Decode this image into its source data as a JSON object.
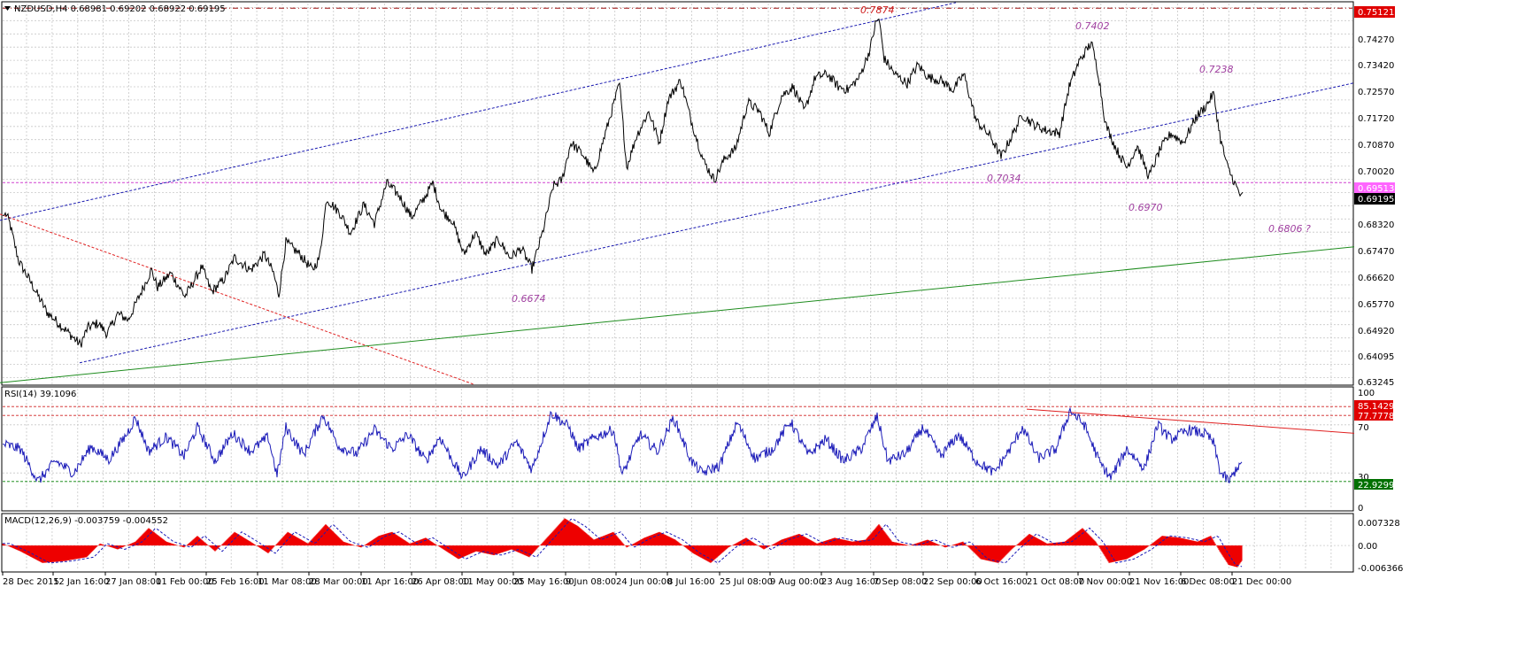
{
  "colors": {
    "background": "#ffffff",
    "grid": "#c8c8c8",
    "price_line": "#000000",
    "channel": "#1a1ab0",
    "red_trend": "#e02020",
    "green_trend": "#1e8c1e",
    "magenta_level": "#d040d0",
    "rsi_line": "#1a1ab8",
    "macd_hist": "#ee0000",
    "signal": "#1a1ab8",
    "annotation_purple": "#a040a0",
    "annotation_red": "#d02020",
    "badge_red": "#e00000",
    "badge_magenta": "#ff66ff",
    "badge_black": "#000000",
    "badge_green": "#007000"
  },
  "main": {
    "title": "NZDUSD,H4  0.68981 0.69202 0.68922 0.69195",
    "menu_icon": "triangle-down-icon",
    "price_axis": [
      "0.74270",
      "0.73420",
      "0.72570",
      "0.71720",
      "0.70870",
      "0.70020",
      "0.68320",
      "0.67470",
      "0.66620",
      "0.65770",
      "0.64920",
      "0.64095",
      "0.63245"
    ],
    "price_badges": [
      {
        "text": "0.75121",
        "color": "red"
      },
      {
        "text": "0.69513",
        "color": "magenta"
      },
      {
        "text": "0.69195",
        "color": "black"
      }
    ],
    "annotations": [
      {
        "text": "0.7874",
        "color": "red"
      },
      {
        "text": "0.7402",
        "color": "purple"
      },
      {
        "text": "0.7238",
        "color": "purple"
      },
      {
        "text": "0.7034",
        "color": "purple"
      },
      {
        "text": "0.6970",
        "color": "purple"
      },
      {
        "text": "0.6806 ?",
        "color": "purple"
      },
      {
        "text": "0.6674",
        "color": "purple"
      }
    ]
  },
  "rsi": {
    "title": "RSI(14) 39.1096",
    "axis": [
      "100",
      "70",
      "30",
      "0"
    ],
    "badges": [
      {
        "text": "85.1429",
        "color": "red"
      },
      {
        "text": "77.7778",
        "color": "red"
      },
      {
        "text": "22.9299",
        "color": "green"
      }
    ]
  },
  "macd": {
    "title": "MACD(12,26,9) -0.003759 -0.004552",
    "axis": [
      "0.007328",
      "0.00",
      "-0.006366"
    ]
  },
  "time_axis": [
    "28 Dec 2015",
    "12 Jan 16:00",
    "27 Jan 08:00",
    "11 Feb 00:00",
    "25 Feb 16:00",
    "11 Mar 08:00",
    "28 Mar 00:00",
    "11 Apr 16:00",
    "26 Apr 08:00",
    "11 May 00:00",
    "25 May 16:00",
    "9 Jun 08:00",
    "24 Jun 00:00",
    "8 Jul 16:00",
    "25 Jul 08:00",
    "9 Aug 00:00",
    "23 Aug 16:00",
    "7 Sep 08:00",
    "22 Sep 00:00",
    "6 Oct 16:00",
    "21 Oct 08:00",
    "7 Nov 00:00",
    "21 Nov 16:00",
    "6 Dec 08:00",
    "21 Dec 00:00"
  ],
  "chart_data": {
    "type": "line",
    "symbol": "NZDUSD",
    "timeframe": "H4",
    "ohlc_last": {
      "open": 0.68981,
      "high": 0.69202,
      "low": 0.68922,
      "close": 0.69195
    },
    "price_range": [
      0.6303,
      0.7527
    ],
    "x": [
      "28 Dec 2015",
      "12 Jan 16:00",
      "27 Jan 08:00",
      "11 Feb 00:00",
      "25 Feb 16:00",
      "11 Mar 08:00",
      "28 Mar 00:00",
      "11 Apr 16:00",
      "26 Apr 08:00",
      "11 May 00:00",
      "25 May 16:00",
      "9 Jun 08:00",
      "24 Jun 00:00",
      "8 Jul 16:00",
      "25 Jul 08:00",
      "9 Aug 00:00",
      "23 Aug 16:00",
      "7 Sep 08:00",
      "22 Sep 00:00",
      "6 Oct 16:00",
      "21 Oct 08:00",
      "7 Nov 00:00",
      "21 Nov 16:00",
      "6 Dec 08:00",
      "21 Dec 00:00"
    ],
    "price_pivots": [
      [
        0,
        0.6845
      ],
      [
        4,
        0.685
      ],
      [
        8,
        0.682
      ],
      [
        18,
        0.67
      ],
      [
        32,
        0.663
      ],
      [
        50,
        0.6535
      ],
      [
        72,
        0.6475
      ],
      [
        88,
        0.643
      ],
      [
        96,
        0.6485
      ],
      [
        108,
        0.65
      ],
      [
        118,
        0.6465
      ],
      [
        130,
        0.653
      ],
      [
        142,
        0.651
      ],
      [
        155,
        0.659
      ],
      [
        168,
        0.667
      ],
      [
        175,
        0.6615
      ],
      [
        190,
        0.666
      ],
      [
        206,
        0.6585
      ],
      [
        225,
        0.668
      ],
      [
        236,
        0.66
      ],
      [
        250,
        0.664
      ],
      [
        262,
        0.671
      ],
      [
        280,
        0.667
      ],
      [
        296,
        0.672
      ],
      [
        306,
        0.666
      ],
      [
        312,
        0.659
      ],
      [
        320,
        0.676
      ],
      [
        336,
        0.672
      ],
      [
        350,
        0.667
      ],
      [
        358,
        0.671
      ],
      [
        366,
        0.69
      ],
      [
        382,
        0.685
      ],
      [
        393,
        0.679
      ],
      [
        408,
        0.688
      ],
      [
        420,
        0.682
      ],
      [
        434,
        0.695
      ],
      [
        448,
        0.691
      ],
      [
        462,
        0.684
      ],
      [
        476,
        0.69
      ],
      [
        486,
        0.695
      ],
      [
        496,
        0.686
      ],
      [
        508,
        0.683
      ],
      [
        521,
        0.672
      ],
      [
        534,
        0.679
      ],
      [
        546,
        0.672
      ],
      [
        560,
        0.677
      ],
      [
        573,
        0.671
      ],
      [
        586,
        0.674
      ],
      [
        598,
        0.6674
      ],
      [
        610,
        0.679
      ],
      [
        622,
        0.694
      ],
      [
        632,
        0.696
      ],
      [
        642,
        0.708
      ],
      [
        656,
        0.704
      ],
      [
        668,
        0.698
      ],
      [
        682,
        0.712
      ],
      [
        697,
        0.727
      ],
      [
        705,
        0.7
      ],
      [
        716,
        0.71
      ],
      [
        730,
        0.718
      ],
      [
        742,
        0.708
      ],
      [
        752,
        0.722
      ],
      [
        766,
        0.728
      ],
      [
        778,
        0.715
      ],
      [
        792,
        0.702
      ],
      [
        804,
        0.696
      ],
      [
        816,
        0.703
      ],
      [
        828,
        0.706
      ],
      [
        842,
        0.721
      ],
      [
        855,
        0.718
      ],
      [
        866,
        0.711
      ],
      [
        880,
        0.723
      ],
      [
        893,
        0.726
      ],
      [
        906,
        0.718
      ],
      [
        918,
        0.729
      ],
      [
        932,
        0.73
      ],
      [
        944,
        0.726
      ],
      [
        955,
        0.725
      ],
      [
        968,
        0.729
      ],
      [
        980,
        0.738
      ],
      [
        986,
        0.746
      ],
      [
        990,
        0.748
      ],
      [
        996,
        0.735
      ],
      [
        1008,
        0.73
      ],
      [
        1022,
        0.727
      ],
      [
        1034,
        0.733
      ],
      [
        1046,
        0.729
      ],
      [
        1060,
        0.728
      ],
      [
        1074,
        0.725
      ],
      [
        1086,
        0.73
      ],
      [
        1100,
        0.715
      ],
      [
        1116,
        0.71
      ],
      [
        1128,
        0.7034
      ],
      [
        1140,
        0.71
      ],
      [
        1152,
        0.717
      ],
      [
        1164,
        0.714
      ],
      [
        1178,
        0.712
      ],
      [
        1194,
        0.711
      ],
      [
        1205,
        0.726
      ],
      [
        1216,
        0.734
      ],
      [
        1230,
        0.7402
      ],
      [
        1238,
        0.73
      ],
      [
        1246,
        0.714
      ],
      [
        1258,
        0.706
      ],
      [
        1270,
        0.7
      ],
      [
        1282,
        0.707
      ],
      [
        1295,
        0.697
      ],
      [
        1308,
        0.706
      ],
      [
        1320,
        0.711
      ],
      [
        1334,
        0.708
      ],
      [
        1348,
        0.716
      ],
      [
        1360,
        0.72
      ],
      [
        1368,
        0.7238
      ],
      [
        1376,
        0.709
      ],
      [
        1384,
        0.7
      ],
      [
        1392,
        0.695
      ],
      [
        1398,
        0.691
      ],
      [
        1401,
        0.692
      ]
    ],
    "rsi": {
      "period": 14,
      "current": 39.1096,
      "levels": [
        30,
        70
      ],
      "ylim": [
        0,
        100
      ],
      "pivots": [
        [
          0,
          54
        ],
        [
          20,
          50
        ],
        [
          40,
          23
        ],
        [
          60,
          40
        ],
        [
          80,
          30
        ],
        [
          100,
          52
        ],
        [
          120,
          41
        ],
        [
          140,
          62
        ],
        [
          150,
          76
        ],
        [
          165,
          48
        ],
        [
          185,
          60
        ],
        [
          205,
          44
        ],
        [
          220,
          68
        ],
        [
          240,
          40
        ],
        [
          260,
          63
        ],
        [
          280,
          48
        ],
        [
          300,
          60
        ],
        [
          310,
          28
        ],
        [
          320,
          68
        ],
        [
          340,
          45
        ],
        [
          362,
          78
        ],
        [
          380,
          52
        ],
        [
          400,
          46
        ],
        [
          420,
          66
        ],
        [
          440,
          50
        ],
        [
          458,
          62
        ],
        [
          478,
          40
        ],
        [
          494,
          60
        ],
        [
          510,
          38
        ],
        [
          520,
          26
        ],
        [
          540,
          50
        ],
        [
          560,
          36
        ],
        [
          580,
          56
        ],
        [
          598,
          33
        ],
        [
          620,
          80
        ],
        [
          640,
          68
        ],
        [
          650,
          50
        ],
        [
          670,
          60
        ],
        [
          690,
          66
        ],
        [
          700,
          28
        ],
        [
          720,
          62
        ],
        [
          740,
          48
        ],
        [
          758,
          76
        ],
        [
          778,
          40
        ],
        [
          790,
          30
        ],
        [
          810,
          36
        ],
        [
          830,
          72
        ],
        [
          850,
          42
        ],
        [
          870,
          50
        ],
        [
          890,
          73
        ],
        [
          910,
          45
        ],
        [
          930,
          58
        ],
        [
          950,
          40
        ],
        [
          970,
          50
        ],
        [
          988,
          77
        ],
        [
          1000,
          40
        ],
        [
          1020,
          46
        ],
        [
          1040,
          68
        ],
        [
          1060,
          44
        ],
        [
          1080,
          62
        ],
        [
          1100,
          40
        ],
        [
          1120,
          30
        ],
        [
          1140,
          52
        ],
        [
          1152,
          68
        ],
        [
          1170,
          42
        ],
        [
          1190,
          50
        ],
        [
          1206,
          82
        ],
        [
          1222,
          70
        ],
        [
          1240,
          38
        ],
        [
          1252,
          26
        ],
        [
          1270,
          50
        ],
        [
          1290,
          34
        ],
        [
          1305,
          70
        ],
        [
          1320,
          58
        ],
        [
          1340,
          66
        ],
        [
          1360,
          62
        ],
        [
          1368,
          55
        ],
        [
          1376,
          30
        ],
        [
          1386,
          22.93
        ],
        [
          1394,
          34
        ],
        [
          1400,
          39.11
        ]
      ]
    },
    "macd": {
      "params": [
        12,
        26,
        9
      ],
      "main": -0.003759,
      "signal": -0.004552,
      "ylim": [
        -0.006366,
        0.007328
      ],
      "pivots": [
        [
          0,
          0.0005
        ],
        [
          20,
          -0.0015
        ],
        [
          45,
          -0.0045
        ],
        [
          70,
          -0.004
        ],
        [
          95,
          -0.003
        ],
        [
          110,
          0.0005
        ],
        [
          130,
          -0.001
        ],
        [
          150,
          0.001
        ],
        [
          165,
          0.0045
        ],
        [
          185,
          0.001
        ],
        [
          205,
          -0.0005
        ],
        [
          220,
          0.0025
        ],
        [
          240,
          -0.0015
        ],
        [
          262,
          0.0035
        ],
        [
          280,
          0.001
        ],
        [
          300,
          -0.002
        ],
        [
          322,
          0.0035
        ],
        [
          345,
          0.0005
        ],
        [
          365,
          0.0055
        ],
        [
          385,
          0.001
        ],
        [
          405,
          -0.0005
        ],
        [
          425,
          0.0025
        ],
        [
          440,
          0.0035
        ],
        [
          460,
          0.0005
        ],
        [
          478,
          0.002
        ],
        [
          498,
          -0.001
        ],
        [
          515,
          -0.0035
        ],
        [
          535,
          -0.0015
        ],
        [
          555,
          -0.0025
        ],
        [
          575,
          -0.001
        ],
        [
          595,
          -0.003
        ],
        [
          615,
          0.002
        ],
        [
          635,
          0.007
        ],
        [
          650,
          0.005
        ],
        [
          668,
          0.0015
        ],
        [
          690,
          0.0035
        ],
        [
          705,
          -0.0005
        ],
        [
          725,
          0.002
        ],
        [
          742,
          0.0035
        ],
        [
          760,
          0.0015
        ],
        [
          780,
          -0.002
        ],
        [
          800,
          -0.0045
        ],
        [
          820,
          -0.0005
        ],
        [
          840,
          0.002
        ],
        [
          860,
          -0.001
        ],
        [
          880,
          0.0015
        ],
        [
          900,
          0.003
        ],
        [
          920,
          0.0005
        ],
        [
          940,
          0.002
        ],
        [
          960,
          0.001
        ],
        [
          975,
          0.0015
        ],
        [
          990,
          0.0055
        ],
        [
          1005,
          0.001
        ],
        [
          1025,
          0.0
        ],
        [
          1045,
          0.0015
        ],
        [
          1065,
          -0.0005
        ],
        [
          1085,
          0.001
        ],
        [
          1105,
          -0.0035
        ],
        [
          1125,
          -0.0045
        ],
        [
          1140,
          -0.001
        ],
        [
          1160,
          0.003
        ],
        [
          1180,
          0.0005
        ],
        [
          1200,
          0.001
        ],
        [
          1220,
          0.0045
        ],
        [
          1235,
          0.001
        ],
        [
          1250,
          -0.0045
        ],
        [
          1270,
          -0.0035
        ],
        [
          1290,
          -0.001
        ],
        [
          1310,
          0.0025
        ],
        [
          1330,
          0.002
        ],
        [
          1350,
          0.001
        ],
        [
          1365,
          0.0025
        ],
        [
          1375,
          -0.0015
        ],
        [
          1385,
          -0.005
        ],
        [
          1395,
          -0.0056
        ],
        [
          1400,
          -0.004
        ]
      ]
    },
    "trendlines": {
      "channel_upper": [
        [
          0,
          0.683
        ],
        [
          1080,
          0.753
        ]
      ],
      "channel_lower": [
        [
          90,
          0.6372
        ],
        [
          1530,
          0.7272
        ]
      ],
      "red_down": [
        [
          0,
          0.685
        ],
        [
          535,
          0.6303
        ]
      ],
      "green_up": [
        [
          0,
          0.6308
        ],
        [
          1530,
          0.6745
        ]
      ],
      "magenta_level": 0.69513,
      "red_level": 0.75121,
      "rsi_red_trend": [
        [
          1160,
          83
        ],
        [
          1530,
          63
        ]
      ]
    }
  }
}
